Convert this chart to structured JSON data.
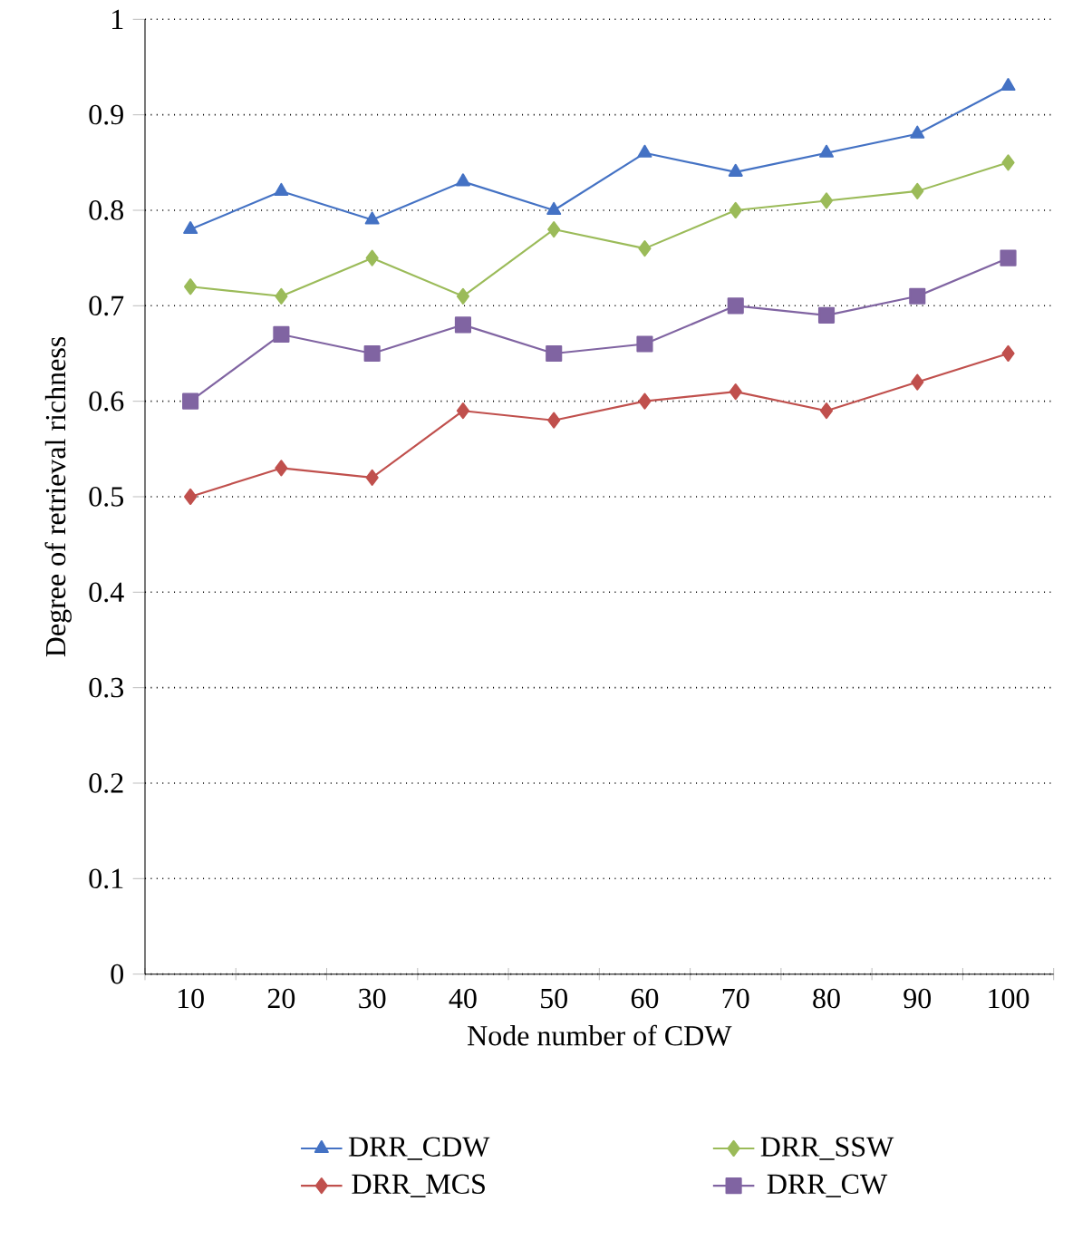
{
  "chart_data": {
    "type": "line",
    "xlabel": "Node number of CDW",
    "ylabel": "Degree of retrieval richness",
    "categories": [
      "10",
      "20",
      "30",
      "40",
      "50",
      "60",
      "70",
      "80",
      "90",
      "100"
    ],
    "series": [
      {
        "name": "DRR_CDW",
        "color": "#4472c4",
        "marker": "triangle",
        "values": [
          0.78,
          0.82,
          0.79,
          0.83,
          0.8,
          0.86,
          0.84,
          0.86,
          0.88,
          0.93
        ]
      },
      {
        "name": "DRR_SSW",
        "color": "#9bbb59",
        "marker": "diamond",
        "values": [
          0.72,
          0.71,
          0.75,
          0.71,
          0.78,
          0.76,
          0.8,
          0.81,
          0.82,
          0.85
        ]
      },
      {
        "name": "DRR_MCS",
        "color": "#c0504d",
        "marker": "diamond",
        "values": [
          0.5,
          0.53,
          0.52,
          0.59,
          0.58,
          0.6,
          0.61,
          0.59,
          0.62,
          0.65
        ]
      },
      {
        "name": "DRR_CW",
        "color": "#8064a2",
        "marker": "square",
        "values": [
          0.6,
          0.67,
          0.65,
          0.68,
          0.65,
          0.66,
          0.7,
          0.69,
          0.71,
          0.75
        ]
      }
    ],
    "ylim": [
      0,
      1
    ],
    "yticks": [
      0,
      0.1,
      0.2,
      0.3,
      0.4,
      0.5,
      0.6,
      0.7,
      0.8,
      0.9,
      1
    ],
    "grid": "y",
    "legend": "bottom",
    "line_style": "solid"
  }
}
